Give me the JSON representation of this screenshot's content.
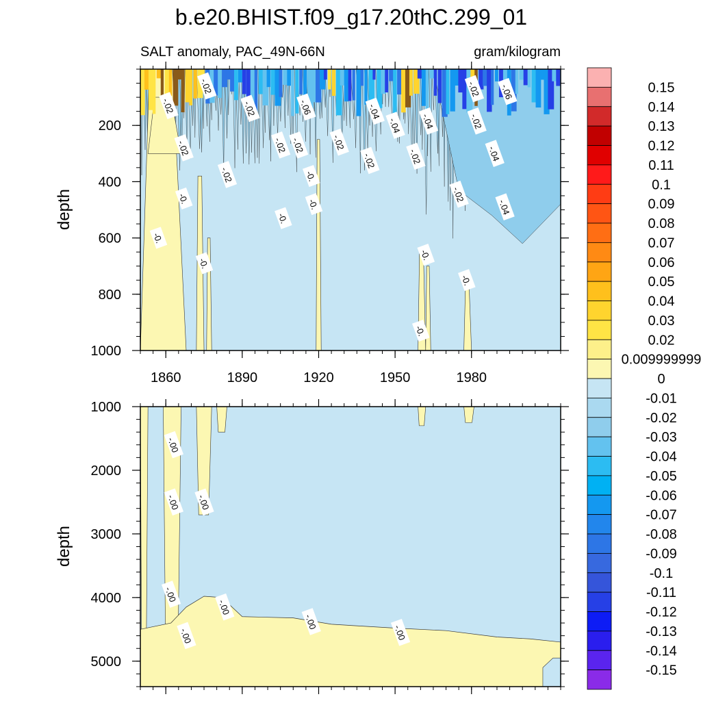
{
  "chart_data": {
    "type": "heatmap",
    "title": "b.e20.BHIST.f09_g17.20thC.299_01",
    "left_string": "SALT anomaly, PAC_49N-66N",
    "right_string": "gram/kilogram",
    "upper_panel": {
      "ylabel": "depth",
      "ylim": [
        1000,
        0
      ],
      "yticks": [
        200,
        400,
        600,
        800,
        1000
      ],
      "xlim": [
        1850,
        2015
      ],
      "xticks": [
        1860,
        1890,
        1920,
        1950,
        1980
      ],
      "contour_labels": [
        {
          "text": "-.02",
          "year": 1876,
          "depth": 60
        },
        {
          "text": "-.02",
          "year": 1861,
          "depth": 130
        },
        {
          "text": "-.02",
          "year": 1893,
          "depth": 140
        },
        {
          "text": "-.06",
          "year": 1915,
          "depth": 135
        },
        {
          "text": "-.04",
          "year": 1942,
          "depth": 150
        },
        {
          "text": "-.04",
          "year": 1950,
          "depth": 200
        },
        {
          "text": "-.04",
          "year": 1963,
          "depth": 185
        },
        {
          "text": "-.02",
          "year": 1981,
          "depth": 70
        },
        {
          "text": "-.06",
          "year": 1994,
          "depth": 80
        },
        {
          "text": "-.02",
          "year": 1982,
          "depth": 185
        },
        {
          "text": "-.02",
          "year": 1867,
          "depth": 280
        },
        {
          "text": "-.02",
          "year": 1905,
          "depth": 270
        },
        {
          "text": "-.02",
          "year": 1912,
          "depth": 270
        },
        {
          "text": "-.02",
          "year": 1928,
          "depth": 260
        },
        {
          "text": "-.02",
          "year": 1940,
          "depth": 325
        },
        {
          "text": "-.02",
          "year": 1958,
          "depth": 310
        },
        {
          "text": "-.04",
          "year": 1989,
          "depth": 300
        },
        {
          "text": "-.02",
          "year": 1884,
          "depth": 375
        },
        {
          "text": "-0.",
          "year": 1917,
          "depth": 380
        },
        {
          "text": "-0.",
          "year": 1867,
          "depth": 460
        },
        {
          "text": "-.02",
          "year": 1975,
          "depth": 445
        },
        {
          "text": "-0.",
          "year": 1918,
          "depth": 480
        },
        {
          "text": "-0.",
          "year": 1906,
          "depth": 530
        },
        {
          "text": "-.04",
          "year": 1993,
          "depth": 490
        },
        {
          "text": "-0.",
          "year": 1857,
          "depth": 600
        },
        {
          "text": "-0.",
          "year": 1962,
          "depth": 660
        },
        {
          "text": "-0.",
          "year": 1875,
          "depth": 690
        },
        {
          "text": "-0.",
          "year": 1978,
          "depth": 750
        },
        {
          "text": "-0.",
          "year": 1960,
          "depth": 930
        }
      ]
    },
    "lower_panel": {
      "ylabel": "depth",
      "ylim": [
        5400,
        1000
      ],
      "yticks": [
        1000,
        2000,
        3000,
        4000,
        5000
      ],
      "xlim": [
        1850,
        2015
      ],
      "contour_labels": [
        {
          "text": "-.00",
          "year": 1863,
          "depth": 1600
        },
        {
          "text": "-.00",
          "year": 1863,
          "depth": 2500
        },
        {
          "text": "-.00",
          "year": 1875,
          "depth": 2500
        },
        {
          "text": "-.00",
          "year": 1862,
          "depth": 3950
        },
        {
          "text": "-.00",
          "year": 1883,
          "depth": 4150
        },
        {
          "text": "-.00",
          "year": 1868,
          "depth": 4600
        },
        {
          "text": "-.00",
          "year": 1917,
          "depth": 4380
        },
        {
          "text": "-.00",
          "year": 1952,
          "depth": 4550
        }
      ]
    },
    "colorbar": {
      "labels": [
        "0.15",
        "0.14",
        "0.13",
        "0.12",
        "0.11",
        "0.1",
        "0.09",
        "0.08",
        "0.07",
        "0.06",
        "0.05",
        "0.04",
        "0.03",
        "0.02",
        "0.009999999",
        "0",
        "-0.01",
        "-0.02",
        "-0.03",
        "-0.04",
        "-0.05",
        "-0.06",
        "-0.07",
        "-0.08",
        "-0.09",
        "-0.1",
        "-0.11",
        "-0.12",
        "-0.13",
        "-0.14",
        "-0.15"
      ],
      "colors": [
        "#fbb1b1",
        "#e87070",
        "#d22a2a",
        "#c10000",
        "#e00000",
        "#ff1a1a",
        "#ff3c14",
        "#ff5514",
        "#ff6e14",
        "#ff8a14",
        "#ffa514",
        "#ffc01c",
        "#ffd42e",
        "#ffe445",
        "#fdf08a",
        "#fcf7b2",
        "#c6e5f4",
        "#aad9f0",
        "#8fcdec",
        "#63c2ef",
        "#2cbcf2",
        "#00b1f3",
        "#1498f0",
        "#2286ec",
        "#2d76e6",
        "#3769df",
        "#3555da",
        "#2640e6",
        "#0d1cf5",
        "#2a1eee",
        "#5a24ee",
        "#8a2be8"
      ]
    }
  }
}
